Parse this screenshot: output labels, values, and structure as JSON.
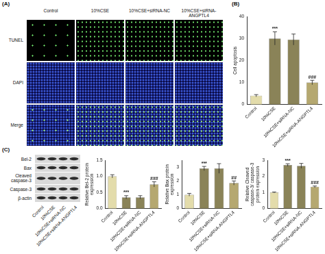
{
  "panels": [
    "(A)",
    "(B)",
    "(C)"
  ],
  "panel_a": {
    "columns": [
      "Control",
      "10%CSE",
      "10%CSE+siRNA-NC",
      "10%CSE+siRNA-ANGPTL4"
    ],
    "rows": [
      "TUNEL",
      "DAPI",
      "Merge"
    ]
  },
  "blot": {
    "rows": [
      "Bel-2",
      "Bax",
      "Cleaved caspase-3",
      "Caspase-3",
      "β-actin"
    ],
    "lanes": [
      "Control",
      "10%CSE",
      "10%CSE+siRNA-NC",
      "10%CSE+siRNA-ANGPTL4"
    ]
  },
  "chart_data": [
    {
      "type": "bar",
      "y_label": "Cell apoptosis",
      "categories": [
        "Control",
        "10%CSE",
        "10%CSE+siRNA-NC",
        "10%CSE+siRNA-ANGPTL4"
      ],
      "values": [
        4,
        30,
        29.5,
        10
      ],
      "errors": [
        0.5,
        3,
        2.5,
        1
      ],
      "colors": [
        "#e3dcab",
        "#8a8358",
        "#8a8358",
        "#b5a870"
      ],
      "annotations": [
        null,
        "***",
        null,
        "###"
      ],
      "ylim": [
        0,
        40
      ],
      "yticks": [
        0,
        10,
        20,
        30,
        40
      ],
      "grid": false
    },
    {
      "type": "bar",
      "y_label": "Relative Bel-2 protein expression",
      "categories": [
        "Control",
        "10%CSE",
        "10%CSE+siRNA-NC",
        "10%CSE+siRNA-ANGPTL4"
      ],
      "values": [
        1.0,
        0.35,
        0.35,
        0.75
      ],
      "errors": [
        0.05,
        0.05,
        0.05,
        0.08
      ],
      "colors": [
        "#e3dcab",
        "#8a8358",
        "#8a8358",
        "#b5a870"
      ],
      "annotations": [
        null,
        "***",
        null,
        "###"
      ],
      "ylim": [
        0,
        1.5
      ],
      "yticks": [
        {
          "value": 0,
          "label": "0.0"
        },
        0.5,
        {
          "value": 1,
          "label": "1.0"
        },
        1.5
      ],
      "grid": false
    },
    {
      "type": "bar",
      "y_label": "Relative Bax protein expression",
      "categories": [
        "Control",
        "10%CSE",
        "10%CSE+siRNA-NC",
        "10%CSE+siRNA-ANGPTL4"
      ],
      "values": [
        1.0,
        2.9,
        2.9,
        1.85
      ],
      "errors": [
        0.1,
        0.15,
        0.35,
        0.15
      ],
      "colors": [
        "#e3dcab",
        "#8a8358",
        "#8a8358",
        "#b5a870"
      ],
      "annotations": [
        null,
        "***",
        null,
        "##"
      ],
      "ylim": [
        0,
        3.5
      ],
      "yticks": [
        0,
        1,
        2,
        3
      ],
      "grid": false
    },
    {
      "type": "bar",
      "y_label": "Relative Cleaved caspase-3/ caspase-3 protein expression",
      "categories": [
        "Control",
        "10%CSE",
        "10%CSE+siRNA-NC",
        "10%CSE+siRNA-ANGPTL4"
      ],
      "values": [
        1.0,
        2.7,
        2.65,
        1.35
      ],
      "errors": [
        0.03,
        0.08,
        0.15,
        0.05
      ],
      "colors": [
        "#e3dcab",
        "#8a8358",
        "#8a8358",
        "#b5a870"
      ],
      "annotations": [
        null,
        "***",
        null,
        "###"
      ],
      "ylim": [
        0,
        3
      ],
      "yticks": [
        0,
        1,
        2,
        3
      ],
      "grid": false
    }
  ]
}
